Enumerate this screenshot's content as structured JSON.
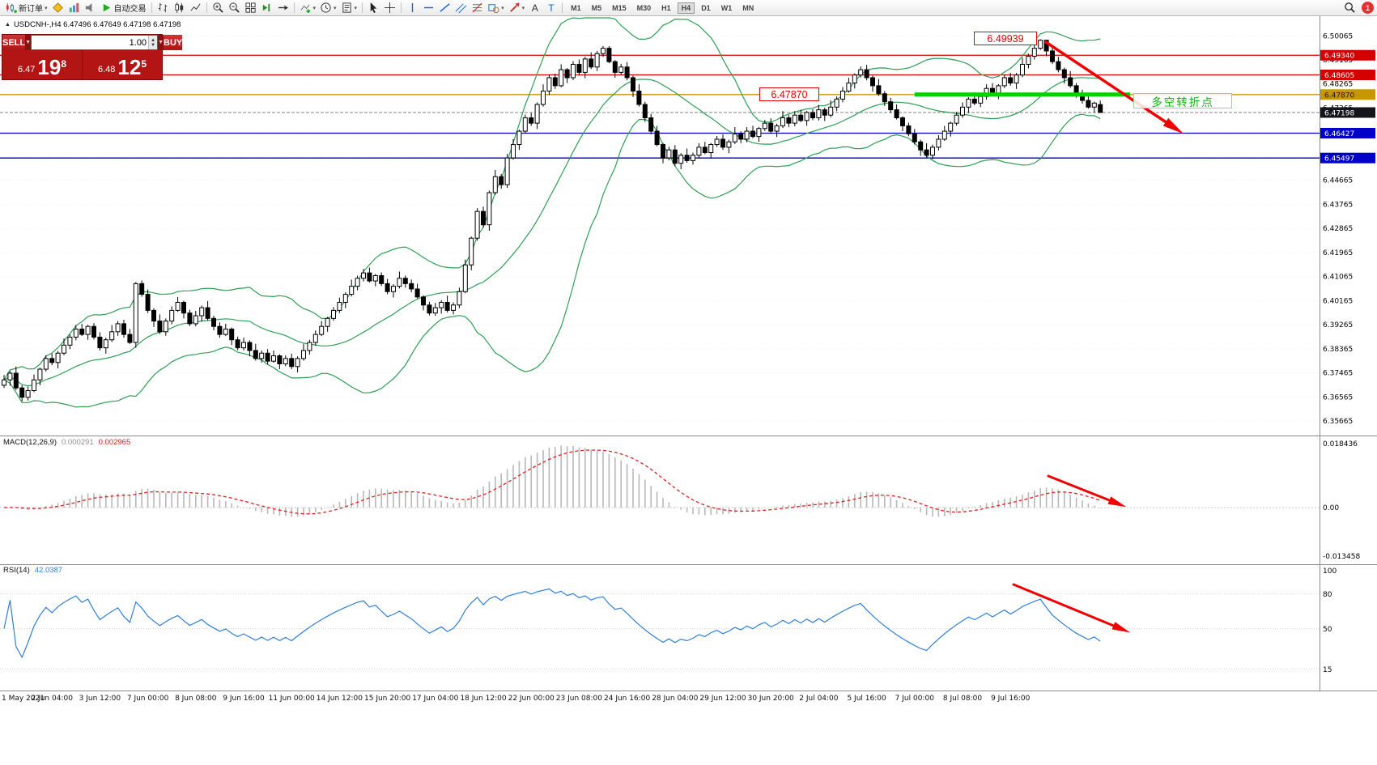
{
  "app": {
    "notification_count": "1"
  },
  "toolbar": {
    "items": [
      {
        "name": "new-order",
        "icon": "new-order",
        "label": "新订单",
        "dd": true
      },
      {
        "name": "metaeditor",
        "icon": "diamond"
      },
      {
        "name": "market-watch",
        "icon": "bars3"
      },
      {
        "name": "alerts",
        "icon": "speaker"
      },
      {
        "name": "autotrading",
        "icon": "play",
        "label": "自动交易"
      },
      {
        "type": "sep"
      },
      {
        "name": "bar-chart",
        "icon": "ohlc"
      },
      {
        "name": "candlestick-chart",
        "icon": "candle"
      },
      {
        "name": "line-chart",
        "icon": "linechart"
      },
      {
        "type": "sep"
      },
      {
        "name": "zoom-in",
        "icon": "zoom-in"
      },
      {
        "name": "zoom-out",
        "icon": "zoom-out"
      },
      {
        "name": "tile-windows",
        "icon": "grid"
      },
      {
        "name": "auto-scroll",
        "icon": "autoscroll"
      },
      {
        "name": "chart-shift",
        "icon": "shift"
      },
      {
        "type": "sep"
      },
      {
        "name": "indicators",
        "icon": "ind-plus",
        "dd": true
      },
      {
        "name": "periods",
        "icon": "clock",
        "dd": true
      },
      {
        "name": "templates",
        "icon": "template",
        "dd": true
      },
      {
        "type": "sep"
      },
      {
        "name": "cursor",
        "icon": "cursor"
      },
      {
        "name": "crosshair",
        "icon": "crosshair"
      },
      {
        "type": "sep"
      },
      {
        "name": "vertical-line",
        "icon": "vline"
      },
      {
        "name": "horizontal-line",
        "icon": "hline"
      },
      {
        "name": "trendline",
        "icon": "tline"
      },
      {
        "name": "equidistant-channel",
        "icon": "channel"
      },
      {
        "name": "fibonacci",
        "icon": "fibo"
      },
      {
        "name": "shapes",
        "icon": "shapes",
        "dd": true
      },
      {
        "name": "arrows",
        "icon": "arrowtool",
        "dd": true
      },
      {
        "name": "text",
        "icon": "textA"
      },
      {
        "name": "text-label",
        "icon": "textT"
      },
      {
        "type": "sep"
      }
    ],
    "timeframes": [
      "M1",
      "M5",
      "M15",
      "M30",
      "H1",
      "H4",
      "D1",
      "W1",
      "MN"
    ],
    "active_timeframe": "H4",
    "notification_count": "1"
  },
  "symbol_line": {
    "text": "USDCNH-,H4  6.47496 6.47649 6.47198 6.47198"
  },
  "trade_panel": {
    "sell_label": "SELL",
    "buy_label": "BUY",
    "volume": "1.00",
    "sell_price_main": "6.47",
    "sell_price_big": "19",
    "sell_price_sup": "8",
    "buy_price_main": "6.48",
    "buy_price_big": "12",
    "buy_price_sup": "5"
  },
  "annotations": {
    "high_label": "6.49939",
    "support_label": "6.47870",
    "turning_point": "多空转折点",
    "arrows": [
      "main-downtrend-arrow",
      "macd-downtrend-arrow",
      "rsi-downtrend-arrow"
    ]
  },
  "macd_panel": {
    "name": "MACD(12,26,9)",
    "value1": "0.000291",
    "value2": "0.002965",
    "scale_top": "0.018436",
    "scale_zero": "0.00",
    "scale_bottom": "-0.013458"
  },
  "rsi_panel": {
    "name": "RSI(14)",
    "value": "42.0387",
    "scale_labels": [
      "100",
      "80",
      "50",
      "15"
    ],
    "levels": [
      80,
      50,
      15
    ]
  },
  "chart_data": [
    {
      "type": "candlestick",
      "symbol": "USDCNH-",
      "timeframe": "H4",
      "title": "USDCNH-,H4",
      "ylim": [
        6.3512,
        6.508
      ],
      "open_first": 6.37,
      "ohlc_current": {
        "open": 6.47496,
        "high": 6.47649,
        "low": 6.47198,
        "close": 6.47198
      },
      "peak": {
        "index": 173,
        "high": 6.49939
      },
      "closes": [
        6.372,
        6.3745,
        6.369,
        6.3655,
        6.368,
        6.372,
        6.376,
        6.38,
        6.3785,
        6.382,
        6.385,
        6.388,
        6.391,
        6.389,
        6.392,
        6.388,
        6.384,
        6.387,
        6.39,
        6.393,
        6.389,
        6.386,
        6.408,
        6.404,
        6.398,
        6.394,
        6.39,
        6.394,
        6.398,
        6.401,
        6.397,
        6.393,
        6.396,
        6.399,
        6.395,
        6.392,
        6.389,
        6.391,
        6.387,
        6.384,
        6.386,
        6.383,
        6.38,
        6.382,
        6.379,
        6.381,
        6.378,
        6.38,
        6.377,
        6.38,
        6.383,
        6.386,
        6.389,
        6.392,
        6.395,
        6.398,
        6.401,
        6.404,
        6.407,
        6.41,
        6.412,
        6.409,
        6.411,
        6.408,
        6.405,
        6.407,
        6.41,
        6.408,
        6.406,
        6.403,
        6.4,
        6.397,
        6.399,
        6.401,
        6.398,
        6.4,
        6.405,
        6.415,
        6.425,
        6.435,
        6.43,
        6.442,
        6.448,
        6.445,
        6.455,
        6.46,
        6.465,
        6.47,
        6.468,
        6.475,
        6.48,
        6.485,
        6.482,
        6.488,
        6.485,
        6.49,
        6.487,
        6.492,
        6.489,
        6.494,
        6.496,
        6.491,
        6.487,
        6.489,
        6.485,
        6.48,
        6.475,
        6.47,
        6.465,
        6.46,
        6.455,
        6.458,
        6.453,
        6.456,
        6.454,
        6.456,
        6.459,
        6.457,
        6.46,
        6.462,
        6.459,
        6.461,
        6.464,
        6.462,
        6.465,
        6.463,
        6.466,
        6.468,
        6.465,
        6.467,
        6.47,
        6.468,
        6.471,
        6.469,
        6.472,
        6.47,
        6.473,
        6.471,
        6.474,
        6.477,
        6.48,
        6.483,
        6.486,
        6.488,
        6.485,
        6.482,
        6.479,
        6.476,
        6.473,
        6.47,
        6.467,
        6.464,
        6.461,
        6.458,
        6.456,
        6.459,
        6.462,
        6.465,
        6.468,
        6.471,
        6.474,
        6.477,
        6.4755,
        6.478,
        6.481,
        6.479,
        6.482,
        6.485,
        6.483,
        6.486,
        6.49,
        6.493,
        6.496,
        6.499,
        6.495,
        6.491,
        6.488,
        6.485,
        6.482,
        6.479,
        6.4765,
        6.474,
        6.4755,
        6.47198
      ],
      "y_axis_labels": [
        "6.50065",
        "6.49165",
        "6.48265",
        "6.47365",
        "6.46465",
        "6.45565",
        "6.44665",
        "6.43765",
        "6.42865",
        "6.41965",
        "6.41065",
        "6.40165",
        "6.39265",
        "6.38365",
        "6.37465",
        "6.36565",
        "6.35665"
      ],
      "time_labels": [
        "1 May 2021",
        "2 Jun 04:00",
        "3 Jun 12:00",
        "7 Jun 00:00",
        "8 Jun 08:00",
        "9 Jun 16:00",
        "11 Jun 00:00",
        "14 Jun 12:00",
        "15 Jun 20:00",
        "17 Jun 04:00",
        "18 Jun 12:00",
        "22 Jun 00:00",
        "23 Jun 08:00",
        "24 Jun 16:00",
        "28 Jun 04:00",
        "29 Jun 12:00",
        "30 Jun 20:00",
        "2 Jul 04:00",
        "5 Jul 16:00",
        "7 Jul 00:00",
        "8 Jul 08:00",
        "9 Jul 16:00"
      ],
      "overlays": {
        "bollinger_period": 20,
        "band_color": "#2e9e53",
        "hlines": [
          {
            "price": 6.4934,
            "color": "#d40000",
            "width": 1.3
          },
          {
            "price": 6.48605,
            "color": "#d40000",
            "width": 1.3
          },
          {
            "price": 6.4787,
            "color": "#c89600",
            "width": 1.3
          },
          {
            "price": 6.46427,
            "color": "#0000c8",
            "width": 1.3
          },
          {
            "price": 6.45497,
            "color": "#0000c8",
            "width": 1.3
          }
        ],
        "current_price": 6.47198,
        "green_segment": {
          "price": 6.4787,
          "from_index": 152,
          "to_index": 188,
          "color": "#00d300"
        },
        "badges": [
          {
            "price": 6.4934,
            "label": "6.49340",
            "bg": "#d40000",
            "fg": "#ffffff"
          },
          {
            "price": 6.48605,
            "label": "6.48605",
            "bg": "#d40000",
            "fg": "#ffffff"
          },
          {
            "price": 6.4787,
            "label": "6.47870",
            "bg": "#c89600",
            "fg": "#201600"
          },
          {
            "price": 6.47198,
            "label": "6.47198",
            "bg": "#14151b",
            "fg": "#ffffff"
          },
          {
            "price": 6.46427,
            "label": "6.46427",
            "bg": "#0000c8",
            "fg": "#ffffff"
          },
          {
            "price": 6.45497,
            "label": "6.45497",
            "bg": "#0000c8",
            "fg": "#ffffff"
          }
        ]
      }
    },
    {
      "type": "bar",
      "name": "MACD(12,26,9)",
      "derived_from": "closes of series 0 (EMA12 - EMA26, signal EMA9)",
      "scale_max": 0.018436,
      "scale_min": -0.013458,
      "current_values": [
        0.000291,
        0.002965
      ],
      "histogram_color": "#b8b8b8",
      "signal_color": "#e02020"
    },
    {
      "type": "line",
      "name": "RSI(14)",
      "period": 14,
      "range": [
        0,
        100
      ],
      "levels": [
        80,
        50,
        15
      ],
      "current_value": 42.0387,
      "line_color": "#2f7ed8"
    }
  ]
}
